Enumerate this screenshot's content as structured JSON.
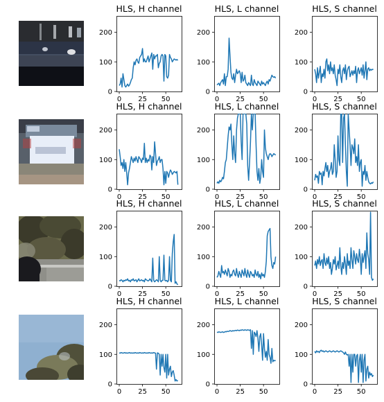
{
  "figure": {
    "thumbnails": [
      {
        "description": "dark car rear at night",
        "colors": [
          "#1b1e28",
          "#2c3446",
          "#0e1016",
          "#5a6478",
          "#c9d3e0"
        ]
      },
      {
        "description": "blurry white car rear",
        "colors": [
          "#58606a",
          "#e8eef8",
          "#8a8678",
          "#3a3e48",
          "#b9a08a"
        ]
      },
      {
        "description": "trees with car and guard rail",
        "colors": [
          "#3b3a2a",
          "#6a6a4a",
          "#8f8f89",
          "#1a1a1e",
          "#b0a89a"
        ]
      },
      {
        "description": "sky with tree corner",
        "colors": [
          "#8fb0d0",
          "#a0bcd8",
          "#50503a",
          "#7a7a5a",
          "#c8d0d8"
        ]
      }
    ],
    "line_color": "#1f77b4"
  },
  "chart_data": [
    {
      "type": "line",
      "row": 0,
      "col": 0,
      "title": "HLS, H channel",
      "xlim": [
        -3,
        67
      ],
      "ylim": [
        0,
        255
      ],
      "xticks": [
        0,
        25,
        50
      ],
      "yticks": [
        0,
        100,
        200
      ],
      "series": [
        {
          "values": [
            20,
            25,
            45,
            15,
            60,
            40,
            20,
            15,
            20,
            25,
            18,
            22,
            30,
            40,
            45,
            80,
            100,
            90,
            105,
            110,
            100,
            95,
            115,
            120,
            125,
            145,
            100,
            110,
            100,
            100,
            110,
            120,
            100,
            110,
            120,
            130,
            75,
            125,
            110,
            120,
            120,
            125,
            80,
            95,
            100,
            120,
            125,
            120,
            35,
            125,
            120,
            50,
            45,
            55,
            125,
            115,
            110,
            100,
            105,
            110,
            108,
            106,
            108,
            105
          ]
        }
      ]
    },
    {
      "type": "line",
      "row": 0,
      "col": 1,
      "title": "HLS, L channel",
      "xlim": [
        -3,
        67
      ],
      "ylim": [
        0,
        255
      ],
      "xticks": [
        0,
        25,
        50
      ],
      "yticks": [
        0,
        100,
        200
      ],
      "series": [
        {
          "values": [
            22,
            25,
            28,
            20,
            30,
            35,
            40,
            25,
            60,
            20,
            50,
            50,
            75,
            180,
            120,
            65,
            45,
            40,
            60,
            30,
            55,
            75,
            60,
            65,
            70,
            60,
            30,
            65,
            35,
            40,
            55,
            30,
            25,
            20,
            30,
            25,
            20,
            55,
            25,
            20,
            40,
            30,
            25,
            20,
            35,
            30,
            25,
            20,
            35,
            25,
            30,
            25,
            20,
            30,
            35,
            25,
            40,
            35,
            45,
            55,
            50,
            48,
            50,
            45
          ]
        }
      ]
    },
    {
      "type": "line",
      "row": 0,
      "col": 2,
      "title": "HLS, S channel",
      "xlim": [
        -3,
        67
      ],
      "ylim": [
        0,
        255
      ],
      "xticks": [
        0,
        25,
        50
      ],
      "yticks": [
        0,
        100,
        200
      ],
      "series": [
        {
          "values": [
            75,
            60,
            30,
            80,
            45,
            65,
            85,
            30,
            60,
            50,
            75,
            45,
            100,
            110,
            70,
            90,
            60,
            100,
            70,
            80,
            60,
            90,
            55,
            40,
            20,
            75,
            60,
            90,
            50,
            30,
            70,
            80,
            60,
            90,
            40,
            70,
            80,
            85,
            50,
            60,
            70,
            55,
            70,
            60,
            85,
            30,
            70,
            80,
            60,
            70,
            80,
            55,
            90,
            45,
            70,
            100,
            40,
            75,
            80,
            70,
            75,
            72,
            75,
            74
          ]
        }
      ]
    },
    {
      "type": "line",
      "row": 1,
      "col": 0,
      "title": "HLS, H channel",
      "xlim": [
        -3,
        67
      ],
      "ylim": [
        0,
        255
      ],
      "xticks": [
        0,
        25,
        50
      ],
      "yticks": [
        0,
        100,
        200
      ],
      "series": [
        {
          "values": [
            135,
            110,
            80,
            90,
            70,
            100,
            60,
            90,
            55,
            15,
            55,
            70,
            90,
            110,
            100,
            90,
            105,
            95,
            110,
            100,
            90,
            110,
            105,
            100,
            90,
            105,
            100,
            155,
            90,
            105,
            90,
            100,
            95,
            115,
            110,
            65,
            110,
            90,
            160,
            120,
            80,
            95,
            100,
            110,
            90,
            100,
            100,
            70,
            15,
            60,
            20,
            60,
            55,
            40,
            55,
            65,
            60,
            50,
            55,
            60,
            58,
            55,
            60,
            15
          ]
        }
      ]
    },
    {
      "type": "line",
      "row": 1,
      "col": 1,
      "title": "HLS, L channel",
      "xlim": [
        -3,
        67
      ],
      "ylim": [
        0,
        255
      ],
      "xticks": [
        0,
        25,
        50
      ],
      "yticks": [
        0,
        100,
        200
      ],
      "series": [
        {
          "values": [
            20,
            25,
            20,
            30,
            25,
            30,
            40,
            35,
            60,
            90,
            100,
            140,
            180,
            210,
            200,
            220,
            150,
            100,
            180,
            120,
            90,
            200,
            240,
            255,
            255,
            255,
            160,
            100,
            255,
            255,
            255,
            255,
            220,
            80,
            30,
            90,
            160,
            255,
            200,
            255,
            255,
            255,
            150,
            60,
            30,
            70,
            20,
            40,
            100,
            60,
            40,
            200,
            140,
            120,
            110,
            100,
            115,
            120,
            118,
            110,
            115,
            120,
            118,
            115
          ]
        }
      ]
    },
    {
      "type": "line",
      "row": 1,
      "col": 2,
      "title": "HLS, S channel",
      "xlim": [
        -3,
        67
      ],
      "ylim": [
        0,
        255
      ],
      "xticks": [
        0,
        25,
        50
      ],
      "yticks": [
        0,
        100,
        200
      ],
      "series": [
        {
          "values": [
            30,
            50,
            40,
            45,
            20,
            60,
            50,
            55,
            15,
            60,
            45,
            70,
            90,
            60,
            80,
            40,
            60,
            70,
            90,
            50,
            60,
            150,
            100,
            40,
            60,
            180,
            100,
            80,
            255,
            255,
            90,
            240,
            255,
            150,
            60,
            10,
            255,
            200,
            150,
            80,
            150,
            140,
            120,
            170,
            90,
            110,
            80,
            150,
            60,
            90,
            100,
            10,
            60,
            50,
            80,
            30,
            60,
            40,
            25,
            20,
            18,
            22,
            20,
            25
          ]
        }
      ]
    },
    {
      "type": "line",
      "row": 2,
      "col": 0,
      "title": "HLS, H channel",
      "xlim": [
        -3,
        67
      ],
      "ylim": [
        0,
        255
      ],
      "xticks": [
        0,
        25,
        50
      ],
      "yticks": [
        0,
        100,
        200
      ],
      "series": [
        {
          "values": [
            20,
            18,
            22,
            20,
            15,
            20,
            18,
            22,
            20,
            25,
            18,
            20,
            15,
            22,
            20,
            25,
            18,
            20,
            22,
            15,
            20,
            25,
            18,
            20,
            22,
            18,
            20,
            15,
            25,
            22,
            20,
            18,
            20,
            25,
            20,
            15,
            95,
            20,
            15,
            18,
            22,
            20,
            15,
            100,
            20,
            15,
            20,
            20,
            105,
            20,
            18,
            20,
            15,
            20,
            100,
            20,
            15,
            110,
            150,
            175,
            10,
            15,
            8,
            5
          ]
        }
      ]
    },
    {
      "type": "line",
      "row": 2,
      "col": 1,
      "title": "HLS, L channel",
      "xlim": [
        -3,
        67
      ],
      "ylim": [
        0,
        255
      ],
      "xticks": [
        0,
        25,
        50
      ],
      "yticks": [
        0,
        100,
        200
      ],
      "series": [
        {
          "values": [
            30,
            35,
            50,
            40,
            30,
            70,
            45,
            50,
            40,
            55,
            45,
            35,
            60,
            50,
            30,
            40,
            35,
            50,
            55,
            40,
            35,
            60,
            40,
            30,
            50,
            40,
            30,
            55,
            45,
            35,
            60,
            40,
            30,
            55,
            40,
            30,
            50,
            45,
            35,
            40,
            30,
            55,
            40,
            35,
            50,
            30,
            40,
            25,
            45,
            35,
            40,
            30,
            50,
            85,
            170,
            185,
            190,
            195,
            100,
            70,
            60,
            80,
            75,
            100
          ]
        }
      ]
    },
    {
      "type": "line",
      "row": 2,
      "col": 2,
      "title": "HLS, S channel",
      "xlim": [
        -3,
        67
      ],
      "ylim": [
        0,
        255
      ],
      "xticks": [
        0,
        25,
        50
      ],
      "yticks": [
        0,
        100,
        200
      ],
      "series": [
        {
          "values": [
            70,
            85,
            60,
            90,
            75,
            100,
            70,
            85,
            90,
            60,
            110,
            80,
            70,
            95,
            75,
            100,
            60,
            80,
            40,
            60,
            90,
            75,
            100,
            55,
            70,
            85,
            60,
            130,
            70,
            40,
            80,
            60,
            100,
            75,
            40,
            110,
            70,
            85,
            60,
            130,
            90,
            60,
            120,
            100,
            75,
            110,
            90,
            80,
            125,
            95,
            40,
            110,
            80,
            100,
            120,
            60,
            180,
            110,
            90,
            40,
            250,
            30,
            20,
            25
          ]
        }
      ]
    },
    {
      "type": "line",
      "row": 3,
      "col": 0,
      "title": "HLS, H channel",
      "xlim": [
        -3,
        67
      ],
      "ylim": [
        0,
        255
      ],
      "xticks": [
        0,
        25,
        50
      ],
      "yticks": [
        0,
        100,
        200
      ],
      "series": [
        {
          "values": [
            105,
            104,
            106,
            105,
            104,
            105,
            106,
            104,
            105,
            104,
            105,
            106,
            104,
            105,
            104,
            105,
            104,
            106,
            105,
            104,
            105,
            104,
            106,
            105,
            104,
            105,
            104,
            106,
            105,
            104,
            105,
            104,
            106,
            105,
            104,
            105,
            104,
            106,
            105,
            104,
            50,
            105,
            104,
            100,
            30,
            100,
            60,
            100,
            55,
            40,
            100,
            20,
            100,
            30,
            50,
            60,
            25,
            40,
            45,
            30,
            10,
            15,
            10,
            12
          ]
        }
      ]
    },
    {
      "type": "line",
      "row": 3,
      "col": 1,
      "title": "HLS, L channel",
      "xlim": [
        -3,
        67
      ],
      "ylim": [
        0,
        255
      ],
      "xticks": [
        0,
        25,
        50
      ],
      "yticks": [
        0,
        100,
        200
      ],
      "series": [
        {
          "values": [
            175,
            174,
            176,
            175,
            174,
            175,
            176,
            174,
            175,
            177,
            176,
            178,
            177,
            178,
            180,
            179,
            178,
            180,
            179,
            180,
            181,
            180,
            182,
            181,
            180,
            182,
            181,
            183,
            182,
            181,
            183,
            182,
            181,
            183,
            182,
            181,
            183,
            120,
            180,
            100,
            175,
            170,
            160,
            180,
            155,
            110,
            160,
            170,
            130,
            80,
            170,
            120,
            90,
            110,
            80,
            150,
            100,
            90,
            70,
            120,
            75,
            80,
            78,
            80
          ]
        }
      ]
    },
    {
      "type": "line",
      "row": 3,
      "col": 2,
      "title": "HLS, S channel",
      "xlim": [
        -3,
        67
      ],
      "ylim": [
        0,
        255
      ],
      "xticks": [
        0,
        25,
        50
      ],
      "yticks": [
        0,
        100,
        200
      ],
      "series": [
        {
          "values": [
            110,
            105,
            112,
            108,
            110,
            106,
            112,
            114,
            110,
            112,
            108,
            110,
            112,
            110,
            108,
            110,
            112,
            110,
            108,
            110,
            112,
            110,
            108,
            110,
            112,
            110,
            108,
            110,
            112,
            110,
            108,
            105,
            100,
            108,
            100,
            98,
            100,
            60,
            100,
            5,
            100,
            40,
            100,
            100,
            60,
            95,
            100,
            5,
            80,
            100,
            40,
            100,
            5,
            80,
            100,
            10,
            50,
            60,
            20,
            40,
            30,
            35,
            25,
            30
          ]
        }
      ]
    }
  ]
}
